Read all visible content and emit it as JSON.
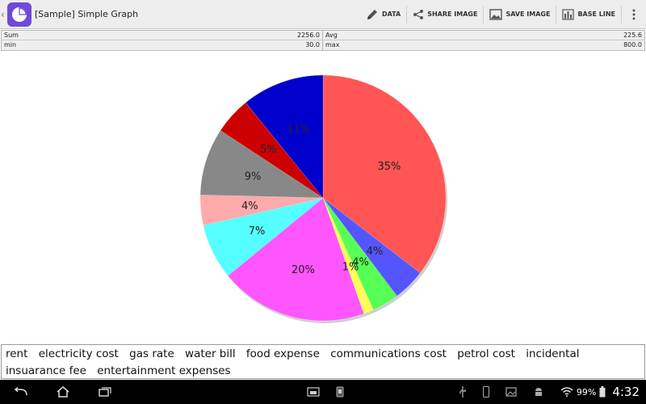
{
  "app": {
    "title": "[Sample] Simple Graph",
    "actions": [
      {
        "label": "DATA",
        "icon": "pencil-icon"
      },
      {
        "label": "SHARE IMAGE",
        "icon": "share-icon"
      },
      {
        "label": "SAVE IMAGE",
        "icon": "image-icon"
      },
      {
        "label": "BASE LINE",
        "icon": "bar-chart-icon"
      }
    ]
  },
  "stats": {
    "sum_label": "Sum",
    "sum_value": "2256.0",
    "avg_label": "Avg",
    "avg_value": "225.6",
    "min_label": "min",
    "min_value": "30.0",
    "max_label": "max",
    "max_value": "800.0"
  },
  "legend": {
    "items": [
      "rent",
      "electricity cost",
      "gas rate",
      "water bill",
      "food expense",
      "communications cost",
      "petrol cost",
      "incidental",
      "insuarance fee",
      "entertainment expenses"
    ]
  },
  "chart_data": {
    "type": "pie",
    "labels": [
      "rent",
      "electricity cost",
      "gas rate",
      "water bill",
      "food expense",
      "communications cost",
      "petrol cost",
      "incidental",
      "insuarance fee",
      "entertainment expenses"
    ],
    "values": [
      800,
      96,
      80,
      30,
      440,
      165,
      90,
      200,
      110,
      245
    ],
    "percent_labels": [
      "35%",
      "4%",
      "4%",
      "1%",
      "20%",
      "7%",
      "4%",
      "9%",
      "5%",
      "11%"
    ],
    "colors": [
      "#ff5555",
      "#5555ff",
      "#55ff55",
      "#ffff55",
      "#ff55ff",
      "#55ffff",
      "#ffaaaa",
      "#888888",
      "#cc0000",
      "#0000cc"
    ]
  },
  "status": {
    "battery": "99%",
    "clock": "4:32"
  }
}
